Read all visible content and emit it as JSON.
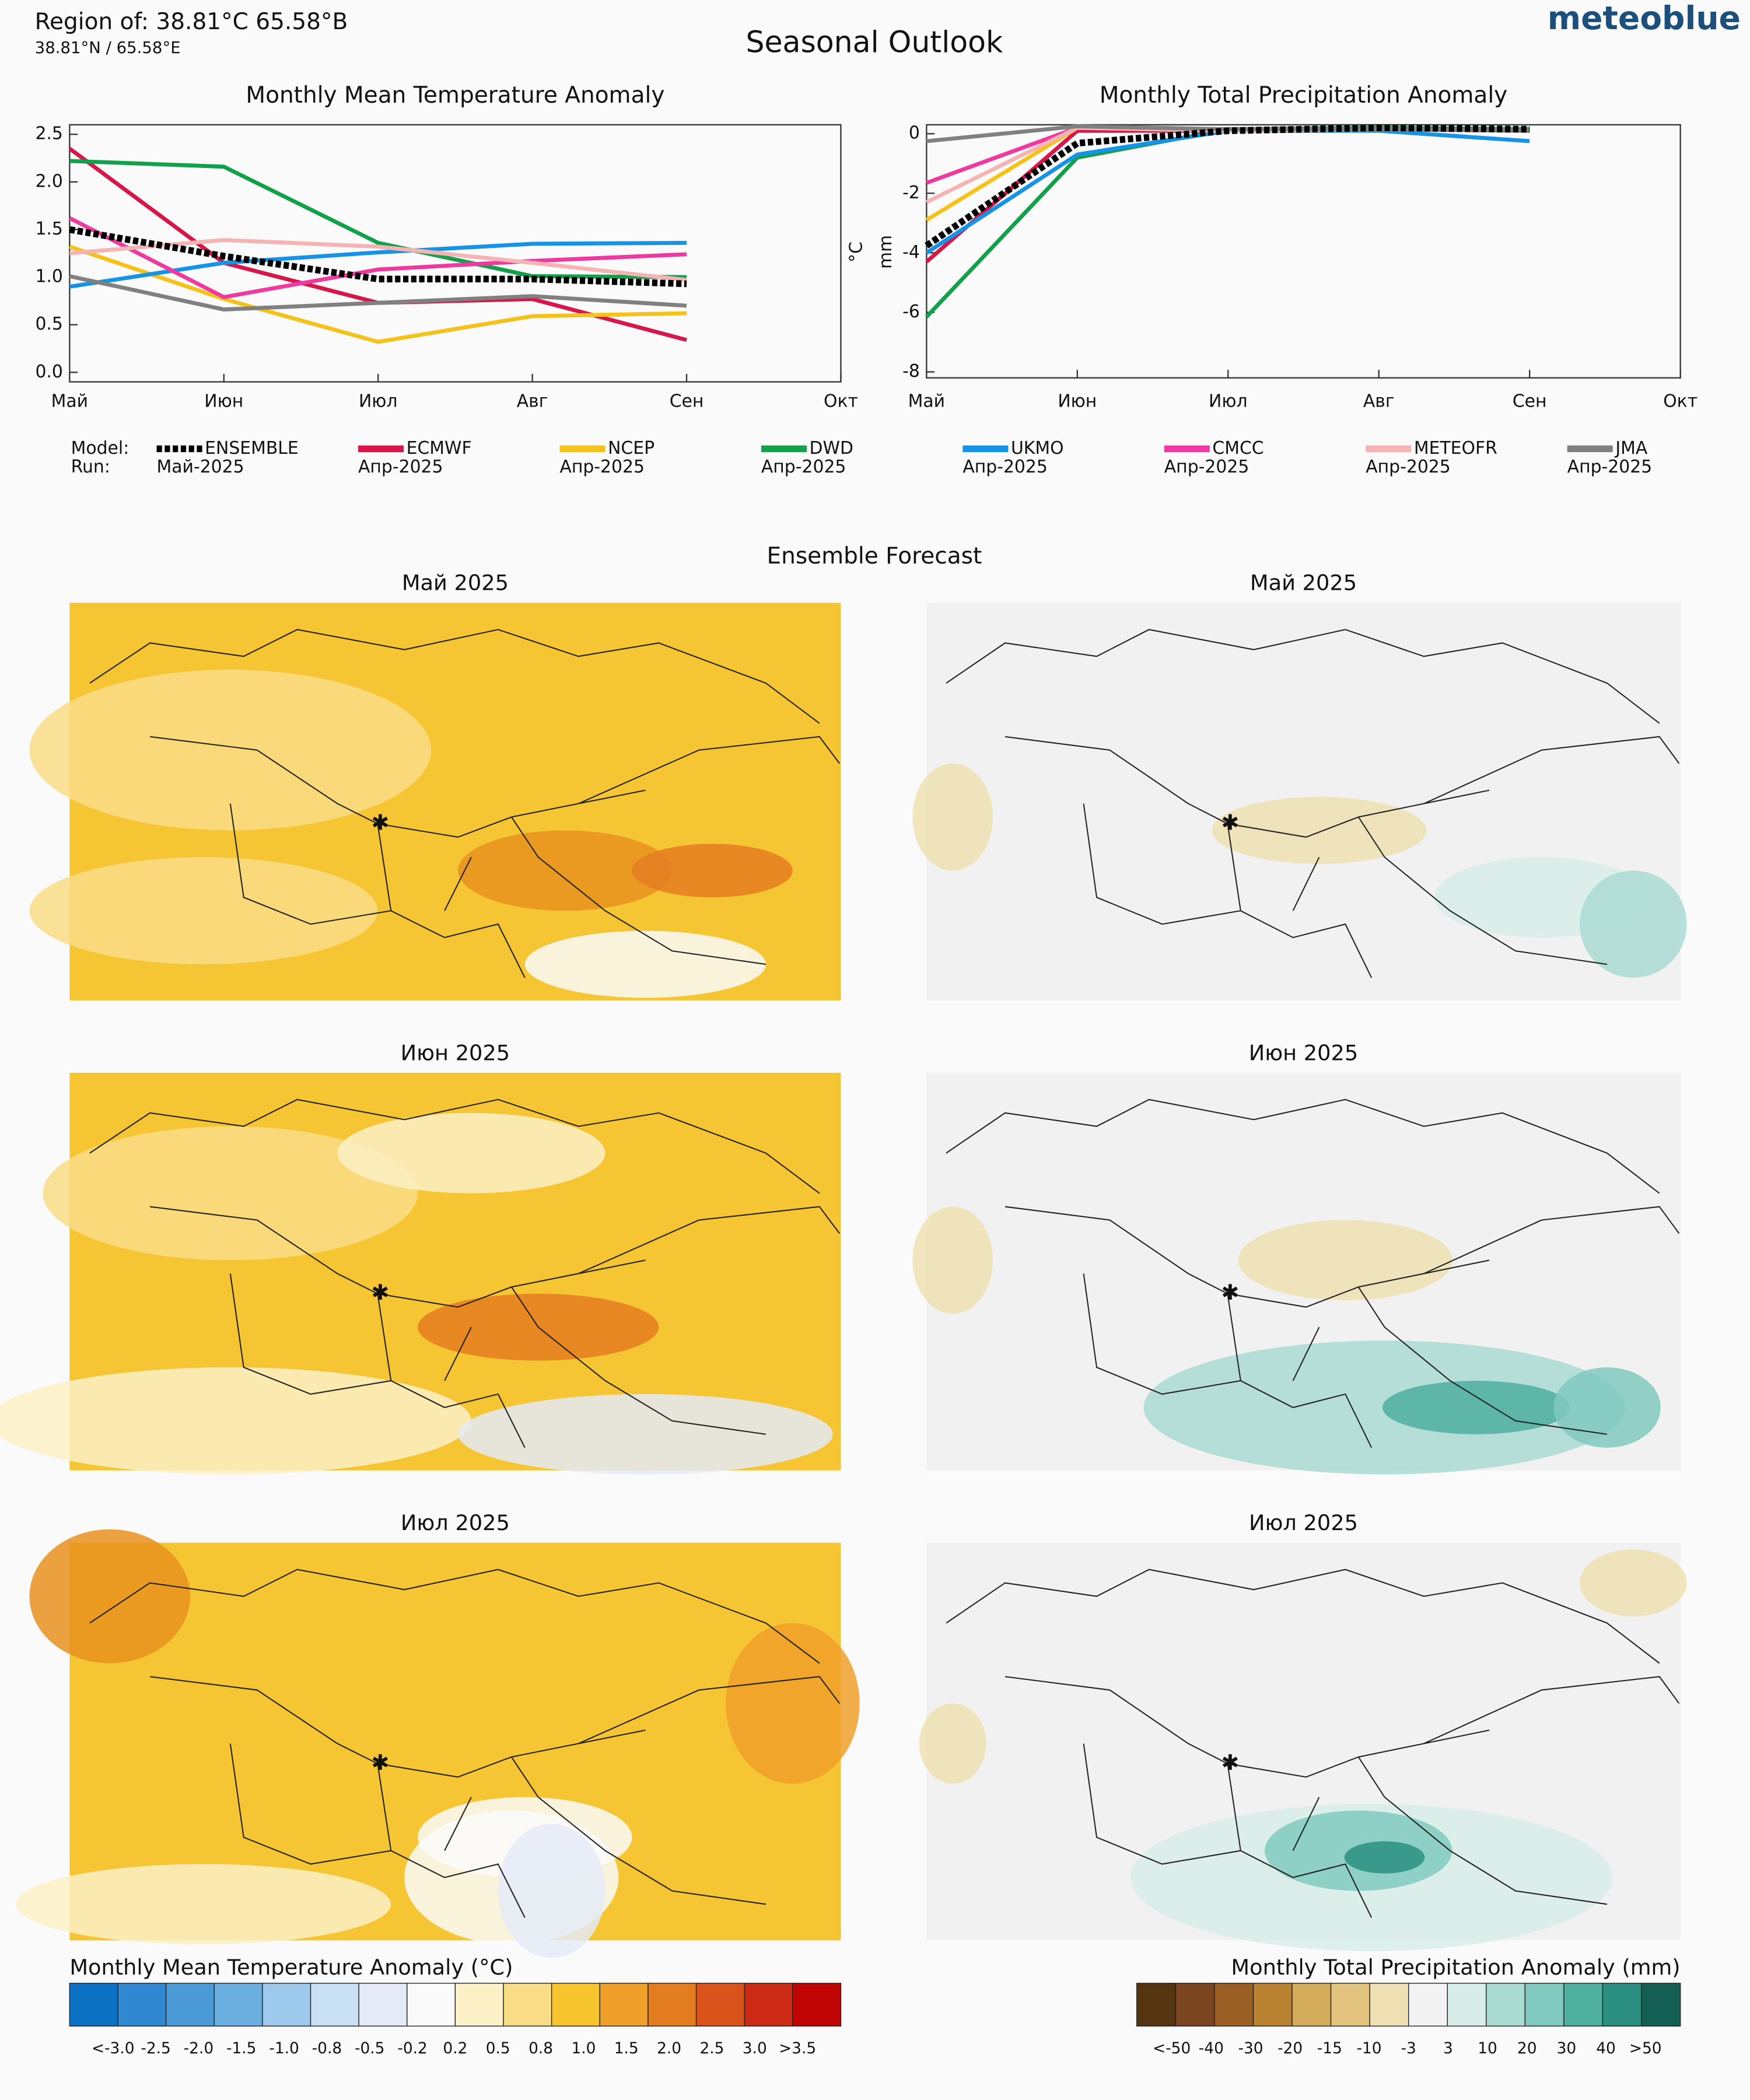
{
  "header": {
    "region": "Region of: 38.81°C 65.58°B",
    "coords": "38.81°N / 65.58°E",
    "title": "Seasonal Outlook",
    "brand": "meteoblue"
  },
  "legend": {
    "model": "Model:",
    "run": "Run:"
  },
  "chart_data": [
    {
      "type": "line",
      "title": "Monthly Mean Temperature Anomaly",
      "y_label": "°C",
      "categories": [
        "Май",
        "Июн",
        "Июл",
        "Авг",
        "Сен",
        "Окт"
      ],
      "ylim": [
        -0.1,
        2.6
      ],
      "yticks": [
        {
          "value": 0,
          "label": "0.0"
        },
        0.5,
        {
          "value": 1,
          "label": "1.0"
        },
        1.5,
        {
          "value": 2,
          "label": "2.0"
        },
        2.5
      ],
      "series": [
        {
          "name": "ENSEMBLE",
          "run": "Май-2025",
          "color": "#000000",
          "values": [
            1.5,
            1.22,
            0.98,
            0.98,
            0.93,
            null
          ]
        },
        {
          "name": "ECMWF",
          "run": "Апр-2025",
          "color": "#d6174a",
          "values": [
            2.35,
            1.15,
            0.73,
            0.77,
            0.34,
            null
          ]
        },
        {
          "name": "NCEP",
          "run": "Апр-2025",
          "color": "#f5c21b",
          "values": [
            1.32,
            0.77,
            0.32,
            0.59,
            0.62,
            null
          ]
        },
        {
          "name": "DWD",
          "run": "Апр-2025",
          "color": "#13a04a",
          "values": [
            2.22,
            2.16,
            1.36,
            1.01,
            1.0,
            null
          ]
        },
        {
          "name": "UKMO",
          "run": "Апр-2025",
          "color": "#1793e6",
          "values": [
            0.9,
            1.15,
            1.26,
            1.35,
            1.36,
            null
          ]
        },
        {
          "name": "CMCC",
          "run": "Апр-2025",
          "color": "#ee3aa0",
          "values": [
            1.62,
            0.79,
            1.08,
            1.17,
            1.24,
            null
          ]
        },
        {
          "name": "METEOFR",
          "run": "Апр-2025",
          "color": "#f4b4b4",
          "values": [
            1.25,
            1.39,
            1.32,
            1.15,
            0.97,
            null
          ]
        },
        {
          "name": "JMA",
          "run": "Апр-2025",
          "color": "#808080",
          "values": [
            1.01,
            0.66,
            0.73,
            0.8,
            0.7,
            null
          ]
        }
      ]
    },
    {
      "type": "line",
      "title": "Monthly Total Precipitation Anomaly",
      "y_label": "mm",
      "categories": [
        "Май",
        "Июн",
        "Июл",
        "Авг",
        "Сен",
        "Окт"
      ],
      "ylim": [
        -8.2,
        0.3
      ],
      "yticks": [
        -8,
        -6,
        -4,
        -2,
        0
      ],
      "series": [
        {
          "name": "ENSEMBLE",
          "color": "#000000",
          "values": [
            -3.76,
            -0.32,
            0.1,
            0.2,
            0.15,
            null
          ]
        },
        {
          "name": "ECMWF",
          "color": "#d6174a",
          "values": [
            -4.3,
            0.1,
            0.1,
            0.15,
            0.1,
            null
          ]
        },
        {
          "name": "NCEP",
          "color": "#f5c21b",
          "values": [
            -2.9,
            0.2,
            0.1,
            0.15,
            0.1,
            null
          ]
        },
        {
          "name": "DWD",
          "color": "#13a04a",
          "values": [
            -6.15,
            -0.8,
            0.15,
            0.2,
            0.15,
            null
          ]
        },
        {
          "name": "UKMO",
          "color": "#1793e6",
          "values": [
            -4.0,
            -0.7,
            0.1,
            0.1,
            -0.25,
            null
          ]
        },
        {
          "name": "CMCC",
          "color": "#ee3aa0",
          "values": [
            -1.65,
            0.2,
            0.1,
            0.15,
            0.1,
            null
          ]
        },
        {
          "name": "METEOFR",
          "color": "#f4b4b4",
          "values": [
            -2.3,
            0.2,
            0.1,
            0.15,
            0.1,
            null
          ]
        },
        {
          "name": "JMA",
          "color": "#808080",
          "values": [
            -0.25,
            0.25,
            0.15,
            0.15,
            0.1,
            null
          ]
        }
      ]
    }
  ],
  "ensemble": {
    "title": "Ensemble Forecast",
    "temperature_maps": [
      "Май 2025",
      "Июн 2025",
      "Июл 2025"
    ],
    "precipitation_maps": [
      "Май 2025",
      "Июн 2025",
      "Июл 2025"
    ]
  },
  "colorbars": [
    {
      "title": "Monthly Mean Temperature Anomaly (°C)",
      "colors": [
        "#0b72c4",
        "#2f87d1",
        "#4b9bd8",
        "#6aafe0",
        "#9cc9ec",
        "#c9e0f5",
        "#e4eaf7",
        "#fafafa",
        "#fcf0c6",
        "#f9dc86",
        "#f6c42c",
        "#f0a02a",
        "#e47c20",
        "#d9531a",
        "#cc2a14",
        "#c00404"
      ],
      "labels": [
        "<-3.0",
        "-2.5",
        "-2.0",
        "-1.5",
        "-1.0",
        "-0.8",
        "-0.5",
        "-0.2",
        "0.2",
        "0.5",
        "0.8",
        "1.0",
        "1.5",
        "2.0",
        "2.5",
        "3.0",
        ">3.5"
      ]
    },
    {
      "title": "Monthly Total Precipitation Anomaly (mm)",
      "colors": [
        "#553510",
        "#7b4520",
        "#9a5f24",
        "#b98230",
        "#d4ab5a",
        "#e2c47f",
        "#efe0b3",
        "#f3f3f3",
        "#d8ede8",
        "#aadbd3",
        "#80c9bf",
        "#4eaf9f",
        "#2a8f80",
        "#135f54"
      ],
      "labels": [
        "<-50",
        "-40",
        "-30",
        "-20",
        "-15",
        "-10",
        "-3",
        "3",
        "10",
        "20",
        "30",
        "40",
        ">50"
      ]
    }
  ]
}
